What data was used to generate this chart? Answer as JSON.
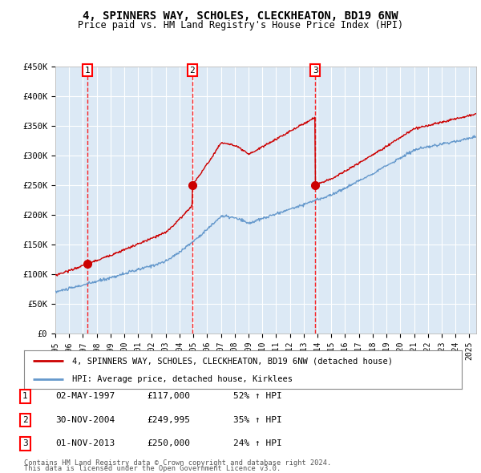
{
  "title": "4, SPINNERS WAY, SCHOLES, CLECKHEATON, BD19 6NW",
  "subtitle": "Price paid vs. HM Land Registry's House Price Index (HPI)",
  "ylim": [
    0,
    450000
  ],
  "yticks": [
    0,
    50000,
    100000,
    150000,
    200000,
    250000,
    300000,
    350000,
    400000,
    450000
  ],
  "ytick_labels": [
    "£0",
    "£50K",
    "£100K",
    "£150K",
    "£200K",
    "£250K",
    "£300K",
    "£350K",
    "£400K",
    "£450K"
  ],
  "xlim_start": 1995.0,
  "xlim_end": 2025.5,
  "bg_color": "#dce9f5",
  "fig_bg_color": "#ffffff",
  "grid_color": "#ffffff",
  "sale_dates": [
    1997.33,
    2004.92,
    2013.83
  ],
  "sale_prices": [
    117000,
    249995,
    250000
  ],
  "sale_labels": [
    "1",
    "2",
    "3"
  ],
  "sale_color": "#cc0000",
  "hpi_line_color": "#6699cc",
  "property_line_color": "#cc0000",
  "legend_property": "4, SPINNERS WAY, SCHOLES, CLECKHEATON, BD19 6NW (detached house)",
  "legend_hpi": "HPI: Average price, detached house, Kirklees",
  "table_rows": [
    {
      "num": "1",
      "date": "02-MAY-1997",
      "price": "£117,000",
      "hpi": "52% ↑ HPI"
    },
    {
      "num": "2",
      "date": "30-NOV-2004",
      "price": "£249,995",
      "hpi": "35% ↑ HPI"
    },
    {
      "num": "3",
      "date": "01-NOV-2013",
      "price": "£250,000",
      "hpi": "24% ↑ HPI"
    }
  ],
  "footnote1": "Contains HM Land Registry data © Crown copyright and database right 2024.",
  "footnote2": "This data is licensed under the Open Government Licence v3.0."
}
